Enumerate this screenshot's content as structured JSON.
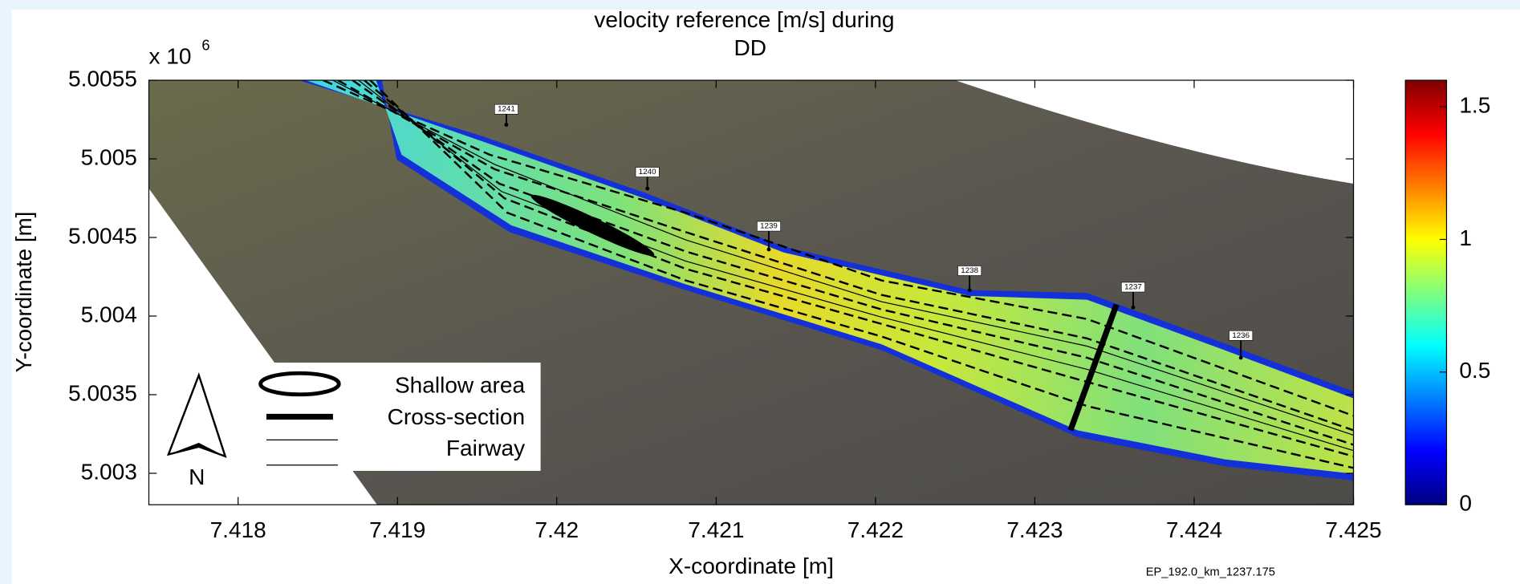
{
  "chart_data": {
    "type": "field-map",
    "title_lines": [
      "velocity reference [m/s] during",
      "DD"
    ],
    "xlabel": "X-coordinate [m]",
    "ylabel": "Y-coordinate [m]",
    "y_multiplier": "x 10",
    "y_multiplier_exponent": "6",
    "xlim": [
      7.41744,
      7.425
    ],
    "xticks": [
      7.418,
      7.419,
      7.42,
      7.421,
      7.422,
      7.423,
      7.424,
      7.425
    ],
    "ylim": [
      5.0028,
      5.0055
    ],
    "yticks": [
      5.003,
      5.0035,
      5.004,
      5.0045,
      5.005,
      5.0055
    ],
    "colormap": "jet",
    "clim": [
      0,
      1.6
    ],
    "cticks": [
      0,
      0.5,
      1,
      1.5
    ],
    "legend": [
      "Shallow area",
      "Cross-section",
      "Fairway"
    ],
    "north_label": "N",
    "km_markers": [
      "1241",
      "1240",
      "1239",
      "1238",
      "1237",
      "1236"
    ],
    "footnote": "EP_192.0_km_1237.175"
  }
}
